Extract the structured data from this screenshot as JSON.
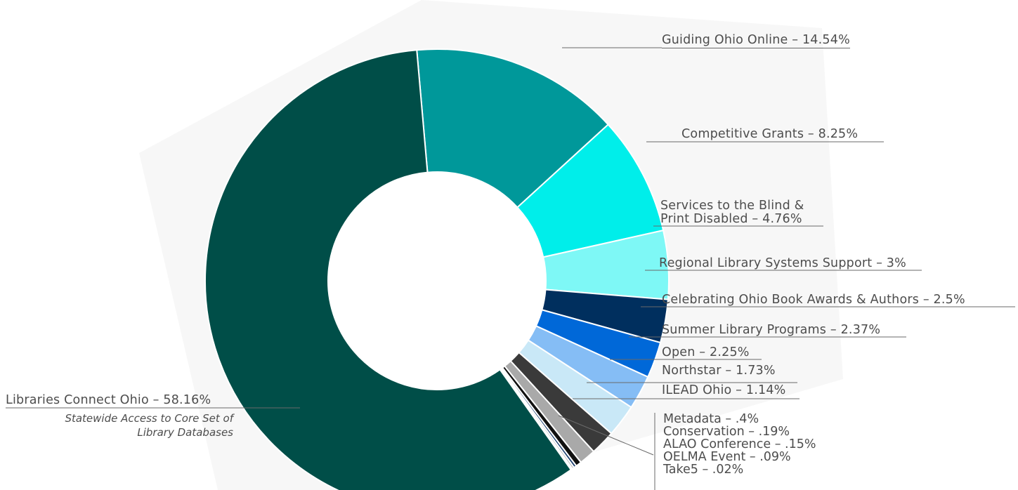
{
  "chart_data": {
    "type": "pie",
    "variant": "donut",
    "title": "",
    "slices": [
      {
        "label": "Guiding Ohio Online – 14.54%",
        "value": 14.54,
        "color": "#00989a"
      },
      {
        "label": "Competitive Grants – 8.25%",
        "value": 8.25,
        "color": "#00eeea"
      },
      {
        "label": "Services to the Blind & Print Disabled – 4.76%",
        "value": 4.76,
        "color": "#7ef8f6"
      },
      {
        "label": "Regional Library Systems Support – 3%",
        "value": 3.0,
        "color": "#002f5e"
      },
      {
        "label": "Celebrating Ohio Book Awards & Authors – 2.5%",
        "value": 2.5,
        "color": "#0068d8"
      },
      {
        "label": "Summer Library Programs – 2.37%",
        "value": 2.37,
        "color": "#85bdf5"
      },
      {
        "label": "Open – 2.25%",
        "value": 2.25,
        "color": "#c9e8f7"
      },
      {
        "label": "Northstar – 1.73%",
        "value": 1.73,
        "color": "#3a3a3a"
      },
      {
        "label": "ILEAD Ohio – 1.14%",
        "value": 1.14,
        "color": "#a9a9a9"
      },
      {
        "label": "Metadata – .4%",
        "value": 0.4,
        "color": "#111111"
      },
      {
        "label": "Conservation – .19%",
        "value": 0.19,
        "color": "#1c3f6e"
      },
      {
        "label": "ALAO Conference – .15%",
        "value": 0.15,
        "color": "#bfbfbf"
      },
      {
        "label": "OELMA Event – .09%",
        "value": 0.09,
        "color": "#e6e6e6"
      },
      {
        "label": "Take5 – .02%",
        "value": 0.02,
        "color": "#ffffff"
      },
      {
        "label": "Libraries Connect Ohio – 58.16%",
        "value": 58.16,
        "color": "#004e48"
      }
    ]
  },
  "labels": {
    "guiding": "Guiding Ohio Online – 14.54%",
    "competitive": "Competitive Grants – 8.25%",
    "blind_line1": "Services to the Blind &",
    "blind_line2": "Print Disabled – 4.76%",
    "regional": "Regional Library Systems Support – 3%",
    "celebrating": "Celebrating Ohio Book Awards & Authors – 2.5%",
    "summer": "Summer Library Programs – 2.37%",
    "open": "Open – 2.25%",
    "northstar": "Northstar – 1.73%",
    "ilead": "ILEAD Ohio – 1.14%",
    "small": [
      "Metadata – .4%",
      "Conservation – .19%",
      "ALAO Conference – .15%",
      "OELMA Event  – .09%",
      "Take5 – .02%"
    ],
    "lco": "Libraries Connect Ohio – 58.16%",
    "lco_sub_line1": "Statewide Access to Core Set of",
    "lco_sub_line2": "Library Databases"
  }
}
